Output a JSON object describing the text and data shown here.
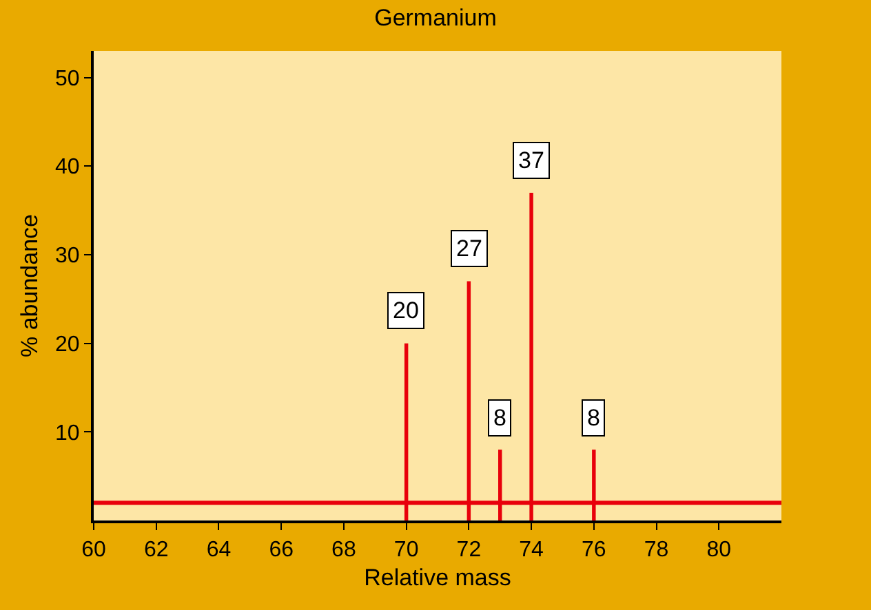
{
  "chart_data": {
    "type": "bar",
    "title": "Germanium",
    "xlabel": "Relative mass",
    "ylabel": "% abundance",
    "x": [
      70,
      72,
      73,
      74,
      76
    ],
    "values": [
      20,
      27,
      8,
      37,
      8
    ],
    "color": "#e8000b",
    "data_labels": true,
    "xlim": [
      60,
      82
    ],
    "xticks": [
      60,
      62,
      64,
      66,
      68,
      70,
      72,
      74,
      76,
      78,
      80
    ],
    "ylim": [
      0,
      53
    ],
    "yticks": [
      10,
      20,
      30,
      40,
      50
    ],
    "ref_lines": [
      {
        "axis": "y",
        "value": 2,
        "color": "#e8000b"
      }
    ]
  }
}
